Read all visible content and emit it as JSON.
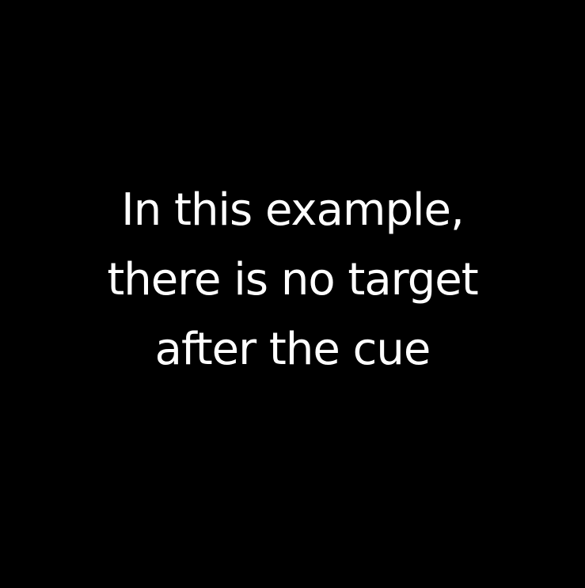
{
  "screen": {
    "background_color": "#000000",
    "text_color": "#ffffff",
    "message_lines": [
      "In this example,",
      "there is no target",
      "after the cue"
    ]
  }
}
